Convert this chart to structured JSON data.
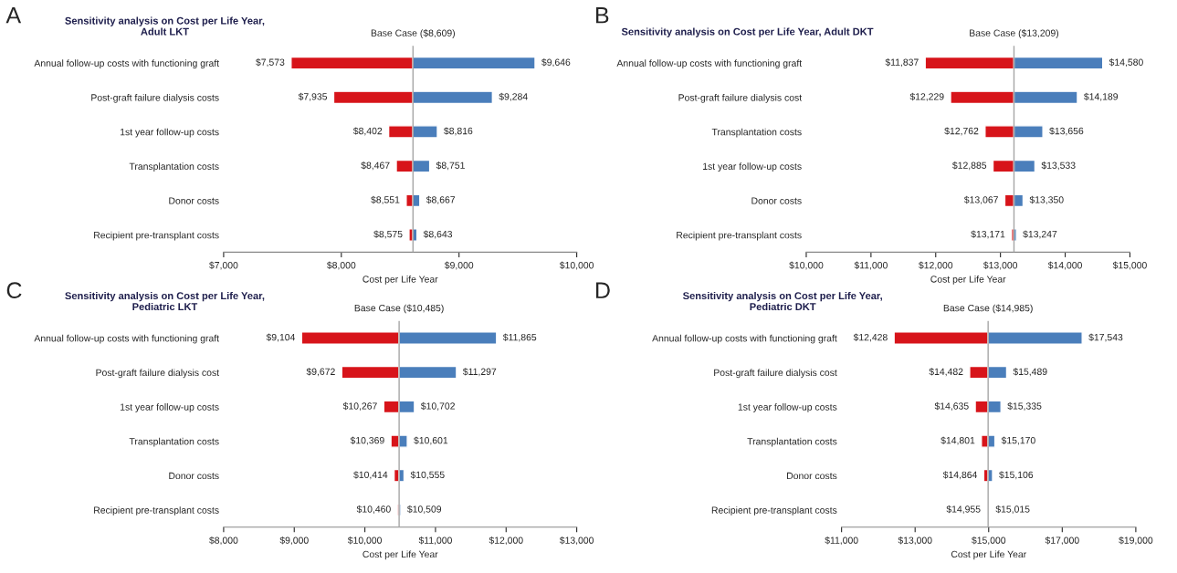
{
  "chart_data": [
    {
      "type": "bar",
      "orientation": "horizontal",
      "title": "Sensitivity analysis on Cost per Life Year,\nAdult LKT",
      "xlabel": "Cost per Life Year",
      "annotations": [
        "A"
      ],
      "categories": [
        "Annual follow-up costs with functioning graft",
        "Post-graft failure dialysis costs",
        "1st year follow-up costs",
        "Transplantation costs",
        "Donor costs",
        "Recipient pre-transplant costs"
      ],
      "series": [
        {
          "color": "#d7141a",
          "base": [
            8609,
            8609,
            8609,
            8609,
            8609,
            8609
          ],
          "values": [
            -1036,
            -674,
            -207,
            -142,
            -58,
            -34
          ],
          "value_labels": [
            "$7,573",
            "$7,935",
            "$8,402",
            "$8,467",
            "$8,551",
            "$8,575"
          ]
        },
        {
          "color": "#4a7ebb",
          "base": [
            8609,
            8609,
            8609,
            8609,
            8609,
            8609
          ],
          "values": [
            1037,
            675,
            207,
            142,
            58,
            34
          ],
          "value_labels": [
            "$9,646",
            "$9,284",
            "$8,816",
            "$8,751",
            "$8,667",
            "$8,643"
          ]
        }
      ],
      "xlim": [
        7000,
        10000
      ],
      "xticks": [
        {
          "value": 7000,
          "label": "$7,000"
        },
        {
          "value": 8000,
          "label": "$8,000"
        },
        {
          "value": 9000,
          "label": "$9,000"
        },
        {
          "value": 10000,
          "label": "$10,000"
        }
      ],
      "ref_lines": [
        {
          "axis": "x",
          "value": 8609,
          "label": "Base Case ($8,609)",
          "color": "#a6a6a6"
        }
      ]
    },
    {
      "type": "bar",
      "orientation": "horizontal",
      "title": "Sensitivity analysis on Cost per Life Year, Adult DKT",
      "xlabel": "Cost per Life Year",
      "annotations": [
        "B"
      ],
      "categories": [
        "Annual follow-up costs with functioning graft",
        "Post-graft failure dialysis cost",
        "Transplantation costs",
        "1st year follow-up costs",
        "Donor costs",
        "Recipient pre-transplant costs"
      ],
      "series": [
        {
          "color": "#d7141a",
          "base": [
            13209,
            13209,
            13209,
            13209,
            13209,
            13209
          ],
          "values": [
            -1372,
            -980,
            -447,
            -324,
            -142,
            -38
          ],
          "value_labels": [
            "$11,837",
            "$12,229",
            "$12,762",
            "$12,885",
            "$13,067",
            "$13,171"
          ]
        },
        {
          "color": "#4a7ebb",
          "base": [
            13209,
            13209,
            13209,
            13209,
            13209,
            13209
          ],
          "values": [
            1371,
            980,
            447,
            324,
            141,
            38
          ],
          "value_labels": [
            "$14,580",
            "$14,189",
            "$13,656",
            "$13,533",
            "$13,350",
            "$13,247"
          ]
        }
      ],
      "xlim": [
        10000,
        15000
      ],
      "xticks": [
        {
          "value": 10000,
          "label": "$10,000"
        },
        {
          "value": 11000,
          "label": "$11,000"
        },
        {
          "value": 12000,
          "label": "$12,000"
        },
        {
          "value": 13000,
          "label": "$13,000"
        },
        {
          "value": 14000,
          "label": "$14,000"
        },
        {
          "value": 15000,
          "label": "$15,000"
        }
      ],
      "ref_lines": [
        {
          "axis": "x",
          "value": 13209,
          "label": "Base Case ($13,209)",
          "color": "#a6a6a6"
        }
      ]
    },
    {
      "type": "bar",
      "orientation": "horizontal",
      "title": "Sensitivity analysis on Cost per Life Year,\nPediatric LKT",
      "xlabel": "Cost per Life Year",
      "annotations": [
        "C"
      ],
      "categories": [
        "Annual follow-up costs with functioning graft",
        "Post-graft failure dialysis cost",
        "1st year follow-up costs",
        "Transplantation costs",
        "Donor costs",
        "Recipient pre-transplant costs"
      ],
      "series": [
        {
          "color": "#d7141a",
          "base": [
            10485,
            10485,
            10485,
            10485,
            10485,
            10485
          ],
          "values": [
            -1381,
            -813,
            -218,
            -116,
            -71,
            -25
          ],
          "value_labels": [
            "$9,104",
            "$9,672",
            "$10,267",
            "$10,369",
            "$10,414",
            "$10,460"
          ]
        },
        {
          "color": "#4a7ebb",
          "base": [
            10485,
            10485,
            10485,
            10485,
            10485,
            10485
          ],
          "values": [
            1380,
            812,
            217,
            116,
            70,
            24
          ],
          "value_labels": [
            "$11,865",
            "$11,297",
            "$10,702",
            "$10,601",
            "$10,555",
            "$10,509"
          ]
        }
      ],
      "xlim": [
        8000,
        13000
      ],
      "xticks": [
        {
          "value": 8000,
          "label": "$8,000"
        },
        {
          "value": 9000,
          "label": "$9,000"
        },
        {
          "value": 10000,
          "label": "$10,000"
        },
        {
          "value": 11000,
          "label": "$11,000"
        },
        {
          "value": 12000,
          "label": "$12,000"
        },
        {
          "value": 13000,
          "label": "$13,000"
        }
      ],
      "ref_lines": [
        {
          "axis": "x",
          "value": 10485,
          "label": "Base Case ($10,485)",
          "color": "#a6a6a6"
        }
      ]
    },
    {
      "type": "bar",
      "orientation": "horizontal",
      "title": "Sensitivity analysis on Cost per Life Year,\nPediatric DKT",
      "xlabel": "Cost per Life Year",
      "annotations": [
        "D"
      ],
      "categories": [
        "Annual follow-up costs with functioning graft",
        "Post-graft failure dialysis cost",
        "1st year follow-up costs",
        "Transplantation costs",
        "Donor costs",
        "Recipient pre-transplant costs"
      ],
      "series": [
        {
          "color": "#d7141a",
          "base": [
            14985,
            14985,
            14985,
            14985,
            14985,
            14985
          ],
          "values": [
            -2557,
            -503,
            -350,
            -184,
            -121,
            -30
          ],
          "value_labels": [
            "$12,428",
            "$14,482",
            "$14,635",
            "$14,801",
            "$14,864",
            "$14,955"
          ]
        },
        {
          "color": "#4a7ebb",
          "base": [
            14985,
            14985,
            14985,
            14985,
            14985,
            14985
          ],
          "values": [
            2558,
            504,
            350,
            185,
            121,
            30
          ],
          "value_labels": [
            "$17,543",
            "$15,489",
            "$15,335",
            "$15,170",
            "$15,106",
            "$15,015"
          ]
        }
      ],
      "xlim": [
        11000,
        19000
      ],
      "xticks": [
        {
          "value": 11000,
          "label": "$11,000"
        },
        {
          "value": 13000,
          "label": "$13,000"
        },
        {
          "value": 15000,
          "label": "$15,000"
        },
        {
          "value": 17000,
          "label": "$17,000"
        },
        {
          "value": 19000,
          "label": "$19,000"
        }
      ],
      "ref_lines": [
        {
          "axis": "x",
          "value": 14985,
          "label": "Base Case ($14,985)",
          "color": "#a6a6a6"
        }
      ]
    }
  ]
}
